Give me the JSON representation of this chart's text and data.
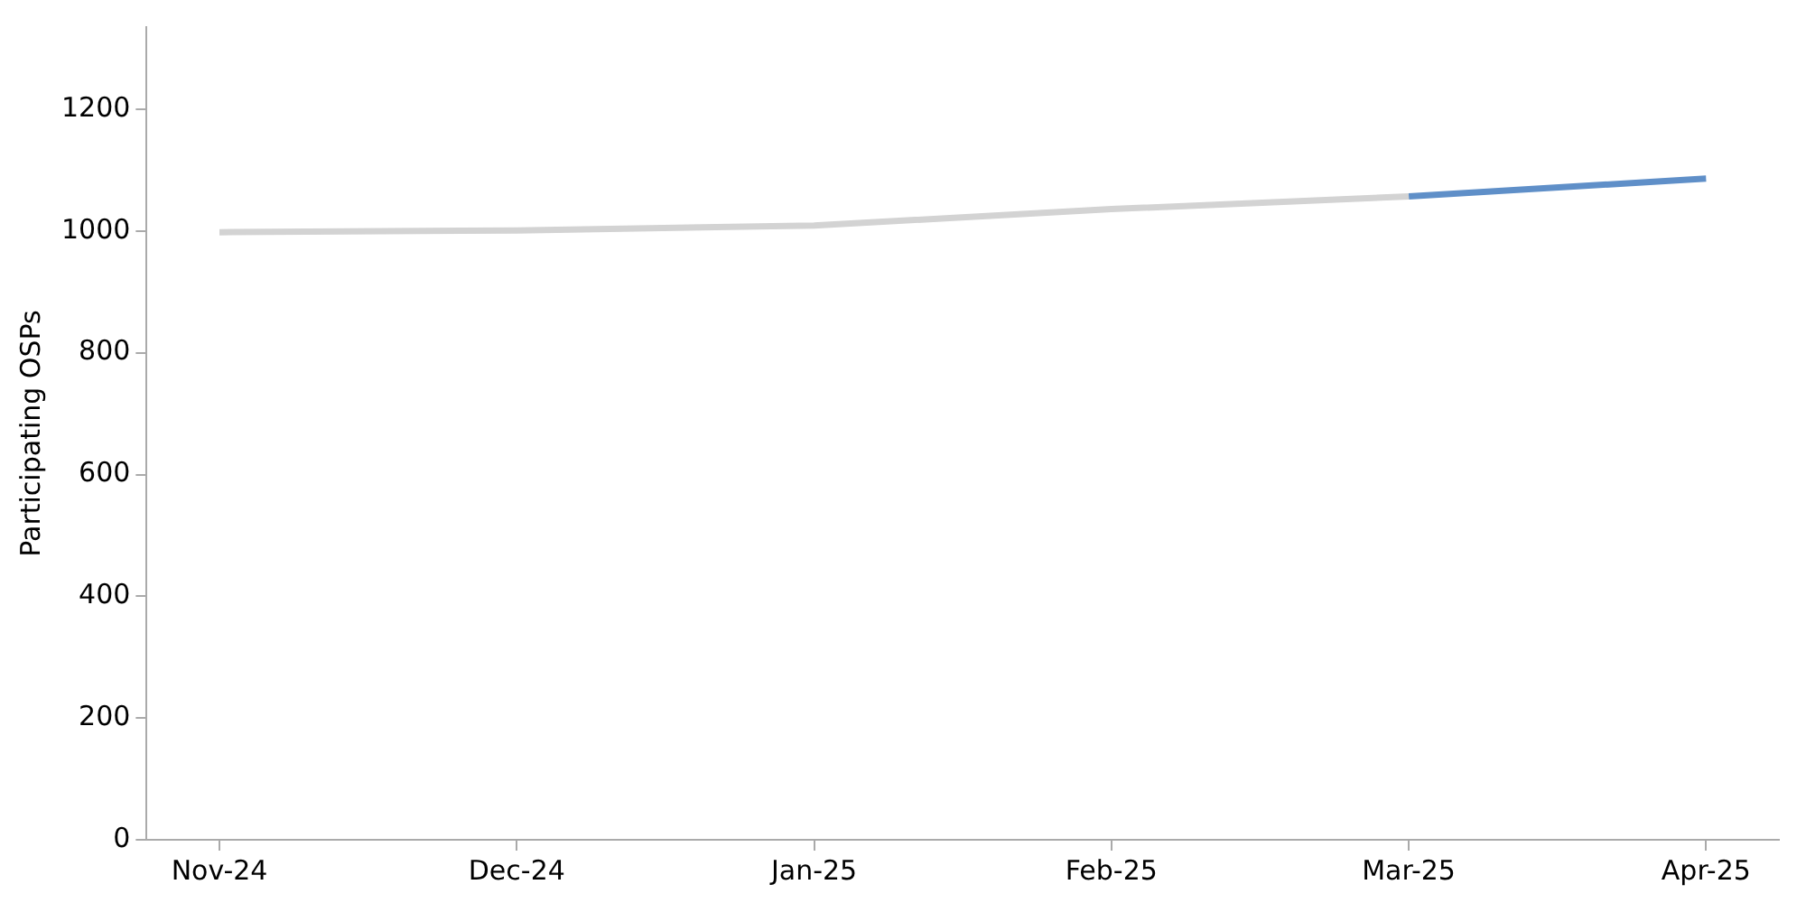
{
  "chart_data": {
    "type": "line",
    "ylabel": "Participating OSPs",
    "categories": [
      "Nov-24",
      "Dec-24",
      "Jan-25",
      "Feb-25",
      "Mar-25",
      "Apr-25"
    ],
    "series": [
      {
        "color": "#d3d3d3",
        "values": [
          998,
          1001,
          1009,
          1036,
          1057,
          null
        ]
      },
      {
        "color": "#5f8fc8",
        "values": [
          null,
          null,
          null,
          null,
          1057,
          1086
        ]
      }
    ],
    "ylim": [
      0,
      1335
    ],
    "yticks": [
      0,
      200,
      400,
      600,
      800,
      1000,
      1200
    ],
    "grid": false,
    "legend": false,
    "marker": "none",
    "line_style": "solid"
  }
}
